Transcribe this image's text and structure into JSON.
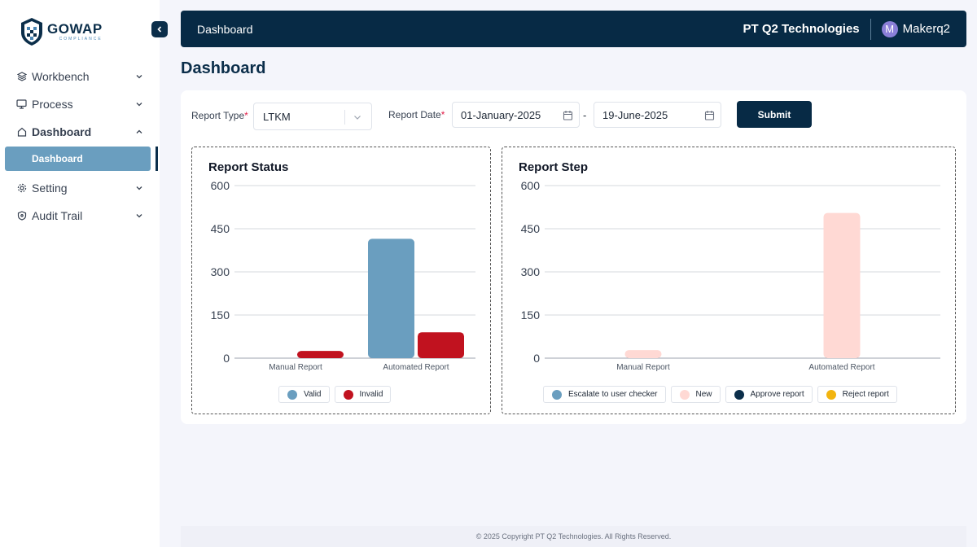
{
  "brand": {
    "name": "GOWAP",
    "tagline": "COMPLIANCE"
  },
  "sidebar": {
    "items": [
      {
        "label": "Workbench",
        "icon": "layers-icon"
      },
      {
        "label": "Process",
        "icon": "monitor-icon"
      },
      {
        "label": "Dashboard",
        "icon": "home-icon",
        "expanded": true,
        "sub": "Dashboard"
      },
      {
        "label": "Setting",
        "icon": "gear-icon"
      },
      {
        "label": "Audit Trail",
        "icon": "shield-icon"
      }
    ]
  },
  "header": {
    "breadcrumb": "Dashboard",
    "company": "PT Q2 Technologies",
    "avatar_letter": "M",
    "user": "Makerq2"
  },
  "page": {
    "title": "Dashboard"
  },
  "filters": {
    "report_type_label": "Report Type",
    "report_type_value": "LTKM",
    "report_date_label": "Report Date",
    "required_mark": "*",
    "date_from": "01-January-2025",
    "date_sep": "-",
    "date_to": "19-June-2025",
    "submit_label": "Submit"
  },
  "colors": {
    "valid": "#6a9ebf",
    "invalid": "#c1121f",
    "escalate": "#6a9ebf",
    "new": "#ffd9d4",
    "approve": "#0b2e4a",
    "reject": "#f2b40f"
  },
  "chart_data": [
    {
      "type": "bar",
      "title": "Report Status",
      "categories": [
        "Manual Report",
        "Automated Report"
      ],
      "ylim": [
        0,
        600
      ],
      "yticks": [
        0,
        150,
        300,
        450,
        600
      ],
      "grid": true,
      "legend": "bottom",
      "series": [
        {
          "name": "Valid",
          "values": [
            0,
            415
          ]
        },
        {
          "name": "Invalid",
          "values": [
            25,
            90
          ]
        }
      ]
    },
    {
      "type": "bar",
      "title": "Report Step",
      "categories": [
        "Manual Report",
        "Automated Report"
      ],
      "ylim": [
        0,
        600
      ],
      "yticks": [
        0,
        150,
        300,
        450,
        600
      ],
      "grid": true,
      "legend": "bottom",
      "series": [
        {
          "name": "Escalate to user checker",
          "values": [
            0,
            0
          ]
        },
        {
          "name": "New",
          "values": [
            28,
            505
          ]
        },
        {
          "name": "Approve report",
          "values": [
            0,
            0
          ]
        },
        {
          "name": "Reject report",
          "values": [
            0,
            0
          ]
        }
      ]
    }
  ],
  "footer": {
    "text": "© 2025 Copyright PT Q2 Technologies. All Rights Reserved."
  }
}
